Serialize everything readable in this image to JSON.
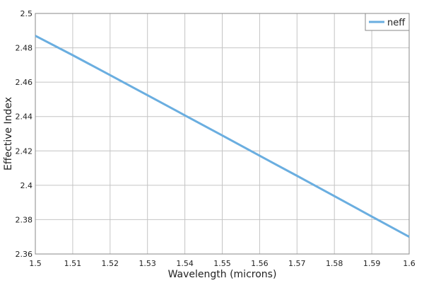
{
  "chart_data": {
    "type": "line",
    "title": "",
    "xlabel": "Wavelength (microns)",
    "ylabel": "Effective Index",
    "xlim": [
      1.5,
      1.6
    ],
    "ylim": [
      2.36,
      2.5
    ],
    "x_ticks": [
      "1.5",
      "1.51",
      "1.52",
      "1.53",
      "1.54",
      "1.55",
      "1.56",
      "1.57",
      "1.58",
      "1.59",
      "1.6"
    ],
    "y_ticks": [
      "2.36",
      "2.38",
      "2.4",
      "2.42",
      "2.44",
      "2.46",
      "2.48",
      "2.5"
    ],
    "grid": true,
    "legend_position": "top-right",
    "series": [
      {
        "name": "neff",
        "color": "#6aaee0",
        "x": [
          1.5,
          1.51,
          1.52,
          1.53,
          1.54,
          1.55,
          1.56,
          1.57,
          1.58,
          1.59,
          1.6
        ],
        "y": [
          2.487,
          2.4757,
          2.4641,
          2.4524,
          2.4407,
          2.429,
          2.4172,
          2.4055,
          2.3937,
          2.3818,
          2.37
        ]
      }
    ]
  }
}
